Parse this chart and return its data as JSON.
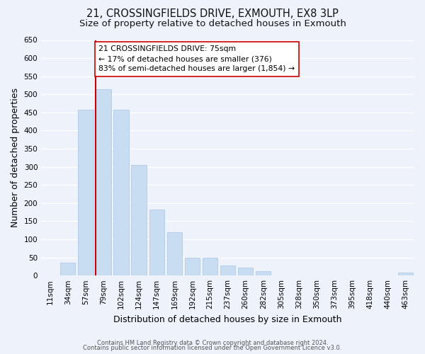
{
  "title": "21, CROSSINGFIELDS DRIVE, EXMOUTH, EX8 3LP",
  "subtitle": "Size of property relative to detached houses in Exmouth",
  "xlabel": "Distribution of detached houses by size in Exmouth",
  "ylabel": "Number of detached properties",
  "bar_labels": [
    "11sqm",
    "34sqm",
    "57sqm",
    "79sqm",
    "102sqm",
    "124sqm",
    "147sqm",
    "169sqm",
    "192sqm",
    "215sqm",
    "237sqm",
    "260sqm",
    "282sqm",
    "305sqm",
    "328sqm",
    "350sqm",
    "373sqm",
    "395sqm",
    "418sqm",
    "440sqm",
    "463sqm"
  ],
  "bar_values": [
    0,
    35,
    458,
    515,
    458,
    305,
    183,
    120,
    50,
    50,
    28,
    22,
    13,
    0,
    0,
    0,
    0,
    0,
    0,
    0,
    8
  ],
  "bar_color": "#c9ddf2",
  "bar_edge_color": "#b0c8e8",
  "marker_line_color": "#cc0000",
  "annotation_text": "21 CROSSINGFIELDS DRIVE: 75sqm\n← 17% of detached houses are smaller (376)\n83% of semi-detached houses are larger (1,854) →",
  "annotation_box_color": "#ffffff",
  "annotation_box_edge": "#cc0000",
  "ylim": [
    0,
    650
  ],
  "yticks": [
    0,
    50,
    100,
    150,
    200,
    250,
    300,
    350,
    400,
    450,
    500,
    550,
    600,
    650
  ],
  "footer_line1": "Contains HM Land Registry data © Crown copyright and database right 2024.",
  "footer_line2": "Contains public sector information licensed under the Open Government Licence v3.0.",
  "bg_color": "#eef3fb",
  "plot_bg_color": "#eef3fb",
  "title_fontsize": 10.5,
  "subtitle_fontsize": 9.5,
  "axis_label_fontsize": 9,
  "tick_fontsize": 7.5,
  "footer_fontsize": 6.0,
  "annotation_fontsize": 7.8
}
